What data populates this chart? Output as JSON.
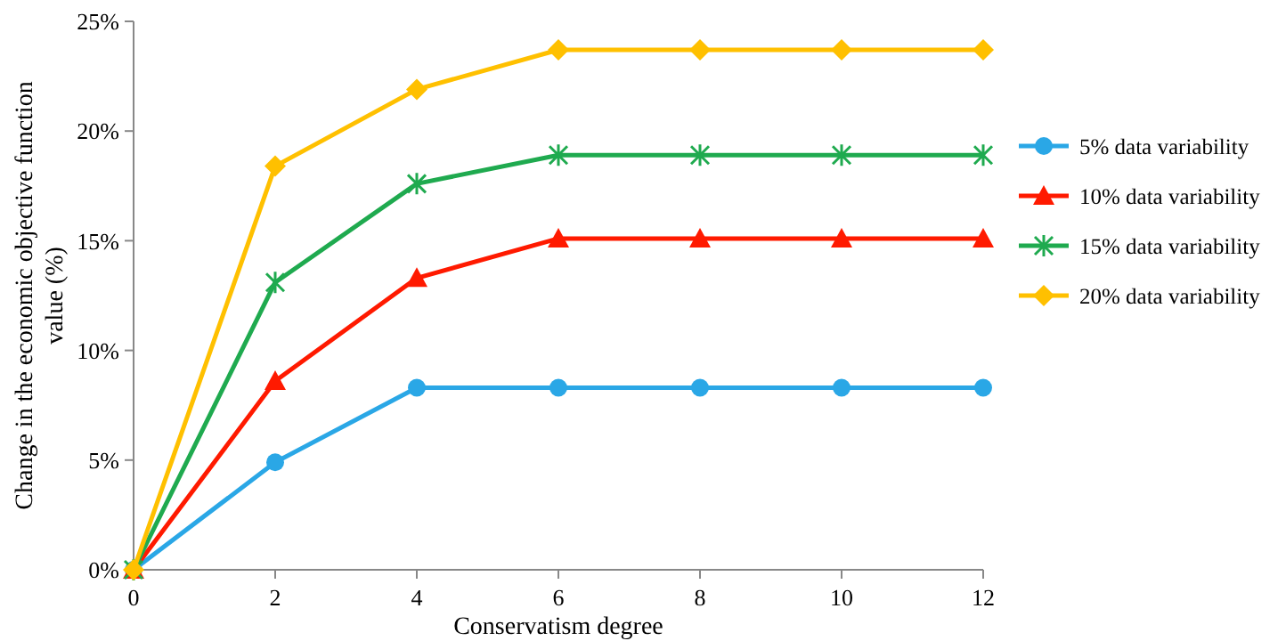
{
  "chart_data": {
    "type": "line",
    "xlabel": "Conservatism degree",
    "ylabel": "Change in the economic objective function value (%)",
    "x": [
      0,
      2,
      4,
      6,
      8,
      10,
      12
    ],
    "xlim": [
      0,
      12
    ],
    "xticks": [
      0,
      2,
      4,
      6,
      8,
      10,
      12
    ],
    "ylim": [
      0,
      25
    ],
    "yticks": [
      {
        "value": 0,
        "label": "0%"
      },
      {
        "value": 5,
        "label": "5%"
      },
      {
        "value": 10,
        "label": "10%"
      },
      {
        "value": 15,
        "label": "15%"
      },
      {
        "value": 20,
        "label": "20%"
      },
      {
        "value": 25,
        "label": "25%"
      }
    ],
    "grid": false,
    "legend": "right",
    "series": [
      {
        "name": "5% data variability",
        "color": "#2aa7e6",
        "marker": "circle",
        "values": [
          0,
          4.9,
          8.3,
          8.3,
          8.3,
          8.3,
          8.3
        ]
      },
      {
        "name": "10% data variability",
        "color": "#ff1a00",
        "marker": "triangle",
        "values": [
          0,
          8.6,
          13.3,
          15.1,
          15.1,
          15.1,
          15.1
        ]
      },
      {
        "name": "15% data variability",
        "color": "#1faa4f",
        "marker": "cross",
        "values": [
          0,
          13.1,
          17.6,
          18.9,
          18.9,
          18.9,
          18.9
        ]
      },
      {
        "name": "20% data variability",
        "color": "#ffc000",
        "marker": "diamond",
        "values": [
          0,
          18.4,
          21.9,
          23.7,
          23.7,
          23.7,
          23.7
        ]
      }
    ]
  }
}
